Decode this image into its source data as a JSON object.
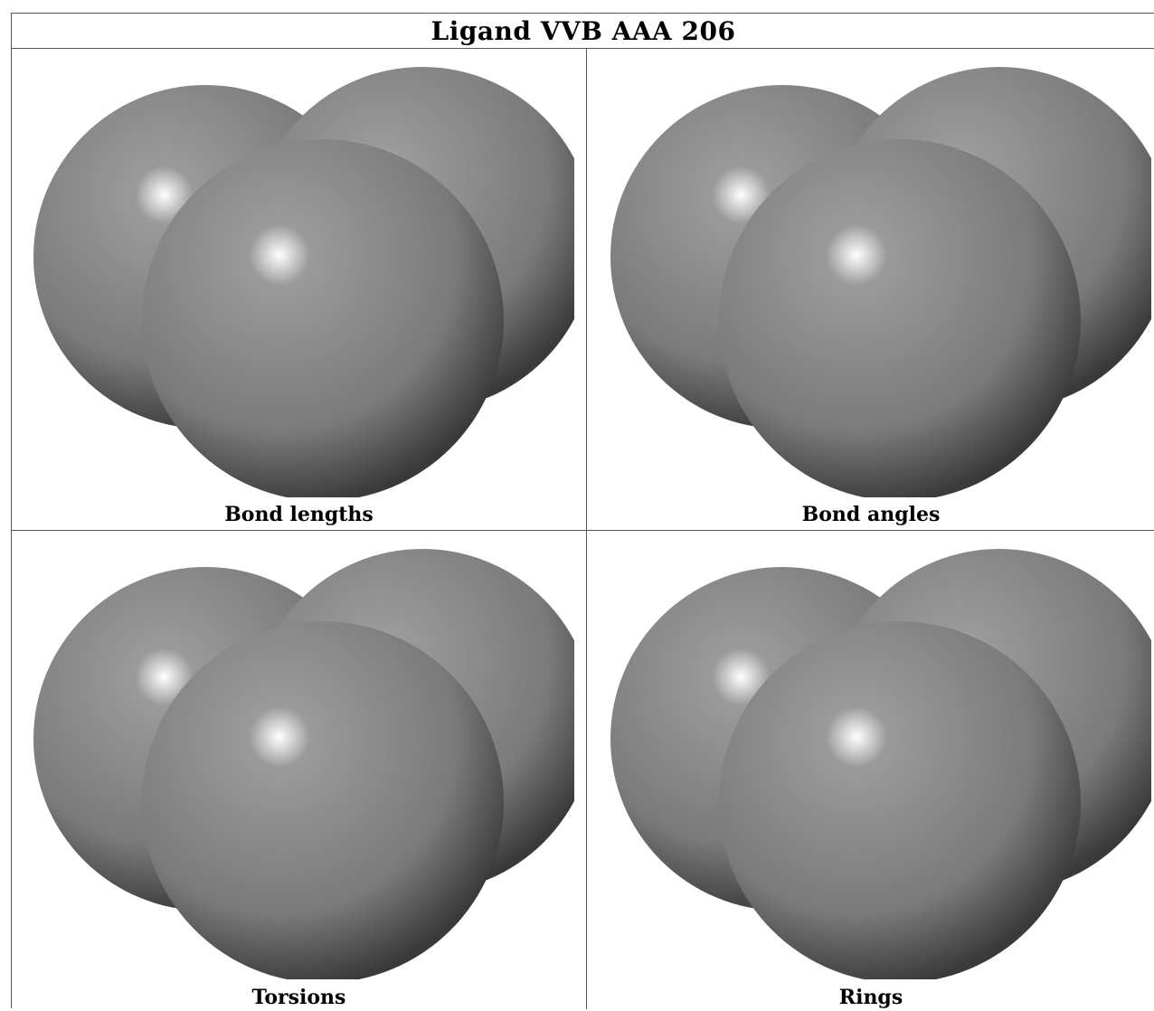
{
  "title": "Ligand VVB AAA 206",
  "panels": [
    {
      "key": "bond-lengths",
      "caption": "Bond lengths"
    },
    {
      "key": "bond-angles",
      "caption": "Bond angles"
    },
    {
      "key": "torsions",
      "caption": "Torsions"
    },
    {
      "key": "rings",
      "caption": "Rings"
    }
  ],
  "colors": {
    "sphere_base": "#808080",
    "sphere_dark": "#3a3a3a",
    "highlight": "#ffffff",
    "grid_line": "#555555"
  }
}
